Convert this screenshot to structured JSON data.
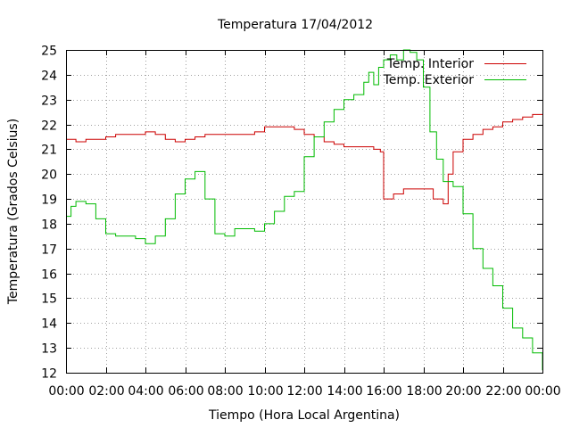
{
  "chart_data": {
    "type": "line",
    "title": "Temperatura 17/04/2012",
    "xlabel": "Tiempo (Hora Local Argentina)",
    "ylabel": "Temperatura (Grados Celsius)",
    "xlim": [
      "00:00",
      "24:00"
    ],
    "ylim": [
      12,
      25
    ],
    "x_ticks": [
      "00:00",
      "02:00",
      "04:00",
      "06:00",
      "08:00",
      "10:00",
      "12:00",
      "14:00",
      "16:00",
      "18:00",
      "20:00",
      "22:00",
      "00:00"
    ],
    "y_ticks": [
      12,
      13,
      14,
      15,
      16,
      17,
      18,
      19,
      20,
      21,
      22,
      23,
      24,
      25
    ],
    "grid": true,
    "legend_position": "top-right",
    "series": [
      {
        "name": "Temp. Interior",
        "color": "#cc0000",
        "step": true,
        "x": [
          "00:00",
          "00:30",
          "01:00",
          "01:30",
          "02:00",
          "02:30",
          "03:00",
          "03:30",
          "04:00",
          "04:30",
          "05:00",
          "05:30",
          "06:00",
          "06:30",
          "07:00",
          "07:30",
          "08:00",
          "08:30",
          "09:00",
          "09:30",
          "10:00",
          "10:30",
          "11:00",
          "11:30",
          "12:00",
          "12:30",
          "13:00",
          "13:30",
          "14:00",
          "14:30",
          "15:00",
          "15:30",
          "15:50",
          "16:00",
          "16:15",
          "16:30",
          "17:00",
          "17:30",
          "18:00",
          "18:30",
          "19:00",
          "19:15",
          "19:30",
          "20:00",
          "20:30",
          "21:00",
          "21:30",
          "22:00",
          "22:30",
          "23:00",
          "23:30",
          "24:00"
        ],
        "values": [
          21.4,
          21.3,
          21.4,
          21.4,
          21.5,
          21.6,
          21.6,
          21.6,
          21.7,
          21.6,
          21.4,
          21.3,
          21.4,
          21.5,
          21.6,
          21.6,
          21.6,
          21.6,
          21.6,
          21.7,
          21.9,
          21.9,
          21.9,
          21.8,
          21.6,
          21.5,
          21.3,
          21.2,
          21.1,
          21.1,
          21.1,
          21.0,
          20.9,
          19.0,
          19.0,
          19.2,
          19.4,
          19.4,
          19.4,
          19.0,
          18.8,
          20.0,
          20.9,
          21.4,
          21.6,
          21.8,
          21.9,
          22.1,
          22.2,
          22.3,
          22.4,
          22.4
        ]
      },
      {
        "name": "Temp. Exterior",
        "color": "#00bb00",
        "step": true,
        "x": [
          "00:00",
          "00:15",
          "00:30",
          "00:45",
          "01:00",
          "01:30",
          "02:00",
          "02:30",
          "03:00",
          "03:30",
          "04:00",
          "04:30",
          "05:00",
          "05:30",
          "06:00",
          "06:30",
          "07:00",
          "07:30",
          "08:00",
          "08:30",
          "09:00",
          "09:30",
          "10:00",
          "10:30",
          "11:00",
          "11:30",
          "12:00",
          "12:30",
          "13:00",
          "13:30",
          "14:00",
          "14:30",
          "15:00",
          "15:15",
          "15:30",
          "15:45",
          "16:00",
          "16:20",
          "16:40",
          "17:00",
          "17:20",
          "17:40",
          "18:00",
          "18:20",
          "18:40",
          "19:00",
          "19:30",
          "20:00",
          "20:30",
          "21:00",
          "21:30",
          "22:00",
          "22:30",
          "23:00",
          "23:30",
          "24:00"
        ],
        "values": [
          18.3,
          18.7,
          18.9,
          18.9,
          18.8,
          18.2,
          17.6,
          17.5,
          17.5,
          17.4,
          17.2,
          17.5,
          18.2,
          19.2,
          19.8,
          20.1,
          19.0,
          17.6,
          17.5,
          17.8,
          17.8,
          17.7,
          18.0,
          18.5,
          19.1,
          19.3,
          20.7,
          21.5,
          22.1,
          22.6,
          23.0,
          23.2,
          23.7,
          24.1,
          23.6,
          24.3,
          24.6,
          24.8,
          24.6,
          25.0,
          24.9,
          24.6,
          23.5,
          21.7,
          20.6,
          19.7,
          19.5,
          18.4,
          17.0,
          16.2,
          15.5,
          14.6,
          13.8,
          13.4,
          12.8,
          12.1
        ]
      }
    ]
  }
}
